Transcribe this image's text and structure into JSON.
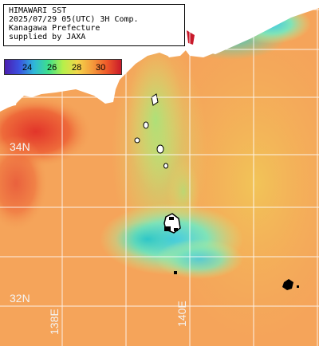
{
  "title": {
    "line1": "HIMAWARI SST",
    "line2": "2025/07/29 05(UTC) 3H Comp.",
    "line3": "Kanagawa Prefecture",
    "line4": "supplied by JAXA"
  },
  "colorbar": {
    "ticks": [
      "24",
      "26",
      "28",
      "30"
    ],
    "colors": [
      "#4b1fb0",
      "#3a52e0",
      "#2fb7d9",
      "#3ee08a",
      "#b6ef4a",
      "#f3d64a",
      "#f59c3c",
      "#ef5a2a",
      "#c91a2a"
    ]
  },
  "grid": {
    "lat_labels": [
      "34N",
      "32N"
    ],
    "lon_labels": [
      "138E",
      "140E"
    ]
  },
  "colors": {
    "land": "#ffffff",
    "missing": "#000000",
    "sea_warm": "#f29a52",
    "sea_cool": "#5fd6c8",
    "gridline": "#ffffff"
  }
}
